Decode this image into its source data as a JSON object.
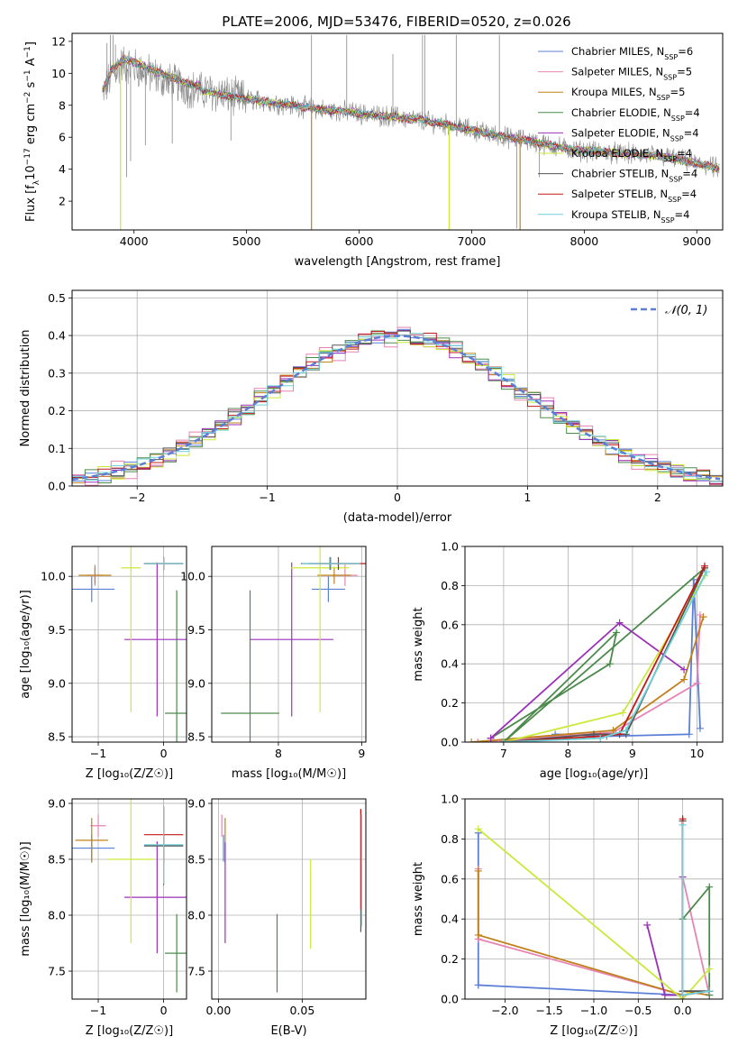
{
  "figure": {
    "title": "PLATE=2006, MJD=53476, FIBERID=0520, z=0.026"
  },
  "models": [
    {
      "key": "ch_miles",
      "label": "Chabrier MILES, N",
      "sub": "SSP",
      "suffix": "=6",
      "color": "#5b7fd6"
    },
    {
      "key": "sa_miles",
      "label": "Salpeter MILES, N",
      "sub": "SSP",
      "suffix": "=5",
      "color": "#e884b4"
    },
    {
      "key": "kr_miles",
      "label": "Kroupa MILES, N",
      "sub": "SSP",
      "suffix": "=5",
      "color": "#c0801a"
    },
    {
      "key": "ch_elodie",
      "label": "Chabrier ELODIE, N",
      "sub": "SSP",
      "suffix": "=4",
      "color": "#4c8a4c"
    },
    {
      "key": "sa_elodie",
      "label": "Salpeter ELODIE, N",
      "sub": "SSP",
      "suffix": "=4",
      "color": "#9b30b8"
    },
    {
      "key": "kr_elodie",
      "label": "Kroupa ELODIE, N",
      "sub": "SSP",
      "suffix": "=4",
      "color": "#c9ea3a"
    },
    {
      "key": "ch_stelib",
      "label": "Chabrier STELIB, N",
      "sub": "SSP",
      "suffix": "=4",
      "color": "#555555"
    },
    {
      "key": "sa_stelib",
      "label": "Salpeter STELIB, N",
      "sub": "SSP",
      "suffix": "=4",
      "color": "#c41818"
    },
    {
      "key": "kr_stelib",
      "label": "Kroupa STELIB, N",
      "sub": "SSP",
      "suffix": "=4",
      "color": "#6cd0d8"
    }
  ],
  "chart_data": [
    {
      "id": "spectrum",
      "type": "line",
      "title": "PLATE=2006, MJD=53476, FIBERID=0520, z=0.026",
      "xlabel": "wavelength [Angstrom, rest frame]",
      "ylabel_parts": [
        "Flux [f",
        "λ",
        "10",
        "−17",
        " erg cm",
        "−2",
        " s",
        "−1",
        " A",
        "−1",
        "]"
      ],
      "xlim": [
        3450,
        9230
      ],
      "ylim": [
        0.2,
        12.5
      ],
      "xticks": [
        4000,
        5000,
        6000,
        7000,
        8000,
        9000
      ],
      "yticks": [
        2,
        4,
        6,
        8,
        10,
        12
      ],
      "legend_loc": "upper right",
      "data_color": "#888888",
      "continuum": {
        "x": [
          3720,
          3800,
          3900,
          4000,
          4100,
          4200,
          4300,
          4400,
          4500,
          4700,
          4900,
          5100,
          5300,
          5500,
          5700,
          5900,
          6100,
          6300,
          6500,
          6700,
          6900,
          7100,
          7300,
          7500,
          7700,
          7900,
          8100,
          8300,
          8500,
          8700,
          8900,
          9100,
          9200
        ],
        "y": [
          8.6,
          9.9,
          10.6,
          10.4,
          10.1,
          9.8,
          9.5,
          9.3,
          9.0,
          8.8,
          8.5,
          8.3,
          8.1,
          7.9,
          7.7,
          7.6,
          7.4,
          7.3,
          7.1,
          6.9,
          6.6,
          6.3,
          6.0,
          5.8,
          5.5,
          5.2,
          5.1,
          5.0,
          4.9,
          4.8,
          4.5,
          4.2,
          4.0
        ]
      },
      "data_spikes": [
        {
          "x": 3760,
          "y": 11.9
        },
        {
          "x": 3790,
          "y": 12.4
        },
        {
          "x": 3815,
          "y": 12.4
        },
        {
          "x": 3835,
          "y": 11.8
        },
        {
          "x": 3935,
          "y": 3.5
        },
        {
          "x": 3970,
          "y": 4.5
        },
        {
          "x": 4101,
          "y": 5.5
        },
        {
          "x": 4340,
          "y": 5.6
        },
        {
          "x": 4861,
          "y": 5.8
        },
        {
          "x": 5577,
          "y": 12.4
        },
        {
          "x": 5890,
          "y": 12.4
        },
        {
          "x": 6300,
          "y": 11.2
        },
        {
          "x": 6563,
          "y": 12.4
        },
        {
          "x": 6583,
          "y": 12.4
        },
        {
          "x": 6863,
          "y": 12.4
        },
        {
          "x": 7246,
          "y": 12.4
        },
        {
          "x": 7400,
          "y": 0.3
        },
        {
          "x": 7600,
          "y": 3.5
        }
      ],
      "model_dips": [
        {
          "x": 3880,
          "y": 0.2,
          "model": "kr_elodie"
        },
        {
          "x": 5577,
          "y": 0.2,
          "model": "kr_miles"
        },
        {
          "x": 6800,
          "y": 0.2,
          "model": "kr_elodie"
        },
        {
          "x": 7430,
          "y": 0.2,
          "model": "kr_miles"
        }
      ]
    },
    {
      "id": "residuals",
      "type": "bar",
      "xlabel": "(data-model)/error",
      "ylabel": "Normed distribution",
      "xlim": [
        -2.5,
        2.5
      ],
      "ylim": [
        0,
        0.52
      ],
      "xticks": [
        -2,
        -1,
        0,
        1,
        2
      ],
      "xtick_labels": [
        "−2",
        "−1",
        "0",
        "1",
        "2"
      ],
      "yticks": [
        0.0,
        0.1,
        0.2,
        0.3,
        0.4,
        0.5
      ],
      "bin_width": 0.1,
      "bin_start": -2.5,
      "grid": true,
      "legend_loc": "upper right",
      "reference_curve": {
        "label": "𝒩(0, 1)",
        "color": "#5b7fd6",
        "mu": 0,
        "sigma": 1
      },
      "jitter_amplitudes": [
        0.018,
        0.03,
        0.02,
        0.025,
        0.02,
        0.022,
        0.015,
        0.02,
        0.015
      ]
    },
    {
      "id": "age_vs_Z",
      "type": "scatter",
      "xlabel": "Z [log₁₀(Z/Z☉)]",
      "ylabel": "age  [log₁₀(age/yr)]",
      "xlim": [
        -1.4,
        0.35
      ],
      "ylim": [
        8.45,
        10.28
      ],
      "xticks": [
        -1,
        0
      ],
      "xtick_labels": [
        "−1",
        "0"
      ],
      "yticks": [
        8.5,
        9.0,
        9.5,
        10.0
      ],
      "grid": true,
      "points": [
        {
          "model": "ch_miles",
          "x": -1.1,
          "y": 9.88,
          "xerr": 0.35,
          "yerr": 0.12
        },
        {
          "model": "sa_miles",
          "x": -1.05,
          "y": 10.01,
          "xerr": 0.12,
          "yerr": 0.1
        },
        {
          "model": "kr_miles",
          "x": -1.05,
          "y": 10.01,
          "xerr": 0.25,
          "yerr": 0.08
        },
        {
          "model": "ch_elodie",
          "x": 0.2,
          "y": 8.72,
          "xerr": 0.18,
          "yerr": 1.15
        },
        {
          "model": "sa_elodie",
          "x": -0.1,
          "y": 9.41,
          "xerr": 0.5,
          "yerr": 0.72
        },
        {
          "model": "kr_elodie",
          "x": -0.5,
          "y": 10.08,
          "xerr": 0.15,
          "yerr": 1.35
        },
        {
          "model": "ch_stelib",
          "x": 0.0,
          "y": 10.12,
          "xerr": 0.3,
          "yerr": 0.06
        },
        {
          "model": "sa_stelib",
          "x": 0.0,
          "y": 10.12,
          "xerr": 0.3,
          "yerr": 0.06
        },
        {
          "model": "kr_stelib",
          "x": 0.0,
          "y": 10.12,
          "xerr": 0.3,
          "yerr": 0.06
        }
      ]
    },
    {
      "id": "age_vs_mass",
      "type": "scatter",
      "xlabel": "mass [log₁₀(M/M☉)]",
      "ylabel": "",
      "xlim": [
        7.2,
        9.05
      ],
      "ylim": [
        8.45,
        10.28
      ],
      "xticks": [
        8,
        9
      ],
      "xtick_labels": [
        "8",
        "9"
      ],
      "yticks": [
        8.5,
        9.0,
        9.5,
        10.0
      ],
      "grid": true,
      "points": [
        {
          "model": "ch_miles",
          "x": 8.6,
          "y": 9.88,
          "xerr": 0.2,
          "yerr": 0.12
        },
        {
          "model": "sa_miles",
          "x": 8.8,
          "y": 10.01,
          "xerr": 0.15,
          "yerr": 0.1
        },
        {
          "model": "kr_miles",
          "x": 8.67,
          "y": 10.01,
          "xerr": 0.2,
          "yerr": 0.08
        },
        {
          "model": "ch_elodie",
          "x": 7.66,
          "y": 8.72,
          "xerr": 0.35,
          "yerr": 1.15
        },
        {
          "model": "sa_elodie",
          "x": 8.16,
          "y": 9.41,
          "xerr": 0.5,
          "yerr": 0.72
        },
        {
          "model": "kr_elodie",
          "x": 8.5,
          "y": 10.08,
          "xerr": 0.35,
          "yerr": 1.35
        },
        {
          "model": "ch_stelib",
          "x": 8.62,
          "y": 10.12,
          "xerr": 0.35,
          "yerr": 0.06
        },
        {
          "model": "sa_stelib",
          "x": 8.72,
          "y": 10.12,
          "xerr": 0.35,
          "yerr": 0.06
        },
        {
          "model": "kr_stelib",
          "x": 8.63,
          "y": 10.12,
          "xerr": 0.35,
          "yerr": 0.06
        }
      ]
    },
    {
      "id": "mass_vs_Z",
      "type": "scatter",
      "xlabel": "Z [log₁₀(Z/Z☉)]",
      "ylabel": "mass [log₁₀(M/M☉)]",
      "xlim": [
        -1.4,
        0.35
      ],
      "ylim": [
        7.25,
        9.04
      ],
      "xticks": [
        -1,
        0
      ],
      "xtick_labels": [
        "−1",
        "0"
      ],
      "yticks": [
        7.5,
        8.0,
        8.5,
        9.0
      ],
      "grid": true,
      "points": [
        {
          "model": "ch_miles",
          "x": -1.1,
          "y": 8.6,
          "xerr": 0.35,
          "yerr": 0.12
        },
        {
          "model": "sa_miles",
          "x": -1.0,
          "y": 8.8,
          "xerr": 0.12,
          "yerr": 0.1
        },
        {
          "model": "kr_miles",
          "x": -1.1,
          "y": 8.67,
          "xerr": 0.25,
          "yerr": 0.2
        },
        {
          "model": "ch_elodie",
          "x": 0.2,
          "y": 7.66,
          "xerr": 0.18,
          "yerr": 0.35
        },
        {
          "model": "sa_elodie",
          "x": -0.1,
          "y": 8.16,
          "xerr": 0.5,
          "yerr": 0.5
        },
        {
          "model": "kr_elodie",
          "x": -0.5,
          "y": 8.5,
          "xerr": 0.35,
          "yerr": 0.75
        },
        {
          "model": "ch_stelib",
          "x": 0.0,
          "y": 8.62,
          "xerr": 0.3,
          "yerr": 0.35
        },
        {
          "model": "sa_stelib",
          "x": 0.0,
          "y": 8.72,
          "xerr": 0.3,
          "yerr": 0.25
        },
        {
          "model": "kr_stelib",
          "x": 0.0,
          "y": 8.63,
          "xerr": 0.3,
          "yerr": 0.35
        }
      ]
    },
    {
      "id": "mass_vs_ebv",
      "type": "scatter",
      "xlabel": "E(B-V)",
      "ylabel": "",
      "xlim": [
        -0.004,
        0.088
      ],
      "ylim": [
        7.25,
        9.04
      ],
      "xticks": [
        0.0,
        0.05
      ],
      "xtick_labels": [
        "0.00",
        "0.05"
      ],
      "yticks": [
        7.5,
        8.0,
        8.5,
        9.0
      ],
      "grid": true,
      "points": [
        {
          "model": "ch_miles",
          "x": 0.003,
          "y": 8.6,
          "xerr": 0,
          "yerr": 0.12
        },
        {
          "model": "sa_miles",
          "x": 0.002,
          "y": 8.8,
          "xerr": 0,
          "yerr": 0.1
        },
        {
          "model": "kr_miles",
          "x": 0.004,
          "y": 8.67,
          "xerr": 0,
          "yerr": 0.2
        },
        {
          "model": "ch_elodie",
          "x": 0.035,
          "y": 7.66,
          "xerr": 0,
          "yerr": 0.35
        },
        {
          "model": "sa_elodie",
          "x": 0.004,
          "y": 8.2,
          "xerr": 0,
          "yerr": 0.45
        },
        {
          "model": "kr_elodie",
          "x": 0.055,
          "y": 8.1,
          "xerr": 0,
          "yerr": 0.4
        },
        {
          "model": "ch_stelib",
          "x": 0.085,
          "y": 8.4,
          "xerr": 0,
          "yerr": 0.55
        },
        {
          "model": "sa_stelib",
          "x": 0.085,
          "y": 8.5,
          "xerr": 0,
          "yerr": 0.45
        },
        {
          "model": "kr_stelib",
          "x": 0.0855,
          "y": 8.4,
          "xerr": 0,
          "yerr": 0.5
        }
      ]
    },
    {
      "id": "weight_vs_age",
      "type": "line",
      "xlabel": "age  [log₁₀(age/yr)]",
      "ylabel": "mass weight",
      "xlim": [
        6.4,
        10.4
      ],
      "ylim": [
        0,
        1.0
      ],
      "xticks": [
        7,
        8,
        9,
        10
      ],
      "yticks": [
        0.0,
        0.2,
        0.4,
        0.6,
        0.8,
        1.0
      ],
      "grid": true,
      "series": [
        {
          "model": "ch_miles",
          "x": [
            7.8,
            8.6,
            9.88,
            9.95,
            10.05
          ],
          "y": [
            0.04,
            0.03,
            0.04,
            0.83,
            0.07
          ]
        },
        {
          "model": "sa_miles",
          "x": [
            6.6,
            8.7,
            10.0,
            10.05
          ],
          "y": [
            0.0,
            0.05,
            0.3,
            0.65
          ]
        },
        {
          "model": "kr_miles",
          "x": [
            6.5,
            8.7,
            9.8,
            10.1
          ],
          "y": [
            0.0,
            0.06,
            0.32,
            0.64
          ]
        },
        {
          "model": "ch_elodie",
          "x": [
            6.8,
            8.65,
            8.75,
            7.0,
            10.12
          ],
          "y": [
            0.02,
            0.4,
            0.56,
            0.0,
            0.89
          ]
        },
        {
          "model": "sa_elodie",
          "x": [
            6.8,
            8.8,
            9.8
          ],
          "y": [
            0.02,
            0.61,
            0.37
          ]
        },
        {
          "model": "kr_elodie",
          "x": [
            7.0,
            8.85,
            10.12
          ],
          "y": [
            0.0,
            0.15,
            0.85
          ]
        },
        {
          "model": "ch_stelib",
          "x": [
            7.0,
            8.4,
            8.9,
            10.12
          ],
          "y": [
            0.0,
            0.04,
            0.04,
            0.89
          ]
        },
        {
          "model": "sa_stelib",
          "x": [
            7.0,
            8.5,
            8.8,
            10.12
          ],
          "y": [
            0.0,
            0.03,
            0.04,
            0.9
          ]
        },
        {
          "model": "kr_stelib",
          "x": [
            7.0,
            8.5,
            8.9,
            10.15
          ],
          "y": [
            0.0,
            0.02,
            0.06,
            0.87
          ]
        }
      ]
    },
    {
      "id": "weight_vs_Z",
      "type": "line",
      "xlabel": "Z [log₁₀(Z/Z☉)]",
      "ylabel": "mass weight",
      "xlim": [
        -2.45,
        0.45
      ],
      "ylim": [
        0,
        1.0
      ],
      "xticks": [
        -2.0,
        -1.5,
        -1.0,
        -0.5,
        0.0
      ],
      "xtick_labels": [
        "−2.0",
        "−1.5",
        "−1.0",
        "−0.5",
        "0.0"
      ],
      "yticks": [
        0.0,
        0.2,
        0.4,
        0.6,
        0.8,
        1.0
      ],
      "grid": true,
      "series": [
        {
          "model": "ch_miles",
          "x": [
            -2.3,
            -2.3,
            -2.3,
            0.0,
            0.0,
            0.0
          ],
          "y": [
            0.83,
            0.07,
            0.07,
            0.02,
            0.04,
            0.04
          ]
        },
        {
          "model": "sa_miles",
          "x": [
            -2.3,
            -2.3,
            0.0,
            0.0,
            0.3
          ],
          "y": [
            0.65,
            0.3,
            0.02,
            0.61,
            0.02
          ]
        },
        {
          "model": "kr_miles",
          "x": [
            -2.3,
            -2.3,
            0.0,
            0.0,
            0.3
          ],
          "y": [
            0.64,
            0.32,
            0.02,
            0.04,
            0.02
          ]
        },
        {
          "model": "ch_elodie",
          "x": [
            0.0,
            0.0,
            0.3,
            0.3
          ],
          "y": [
            0.89,
            0.4,
            0.56,
            0.02
          ]
        },
        {
          "model": "sa_elodie",
          "x": [
            -0.4,
            -0.2,
            0.0,
            0.0
          ],
          "y": [
            0.37,
            0.02,
            0.02,
            0.61
          ]
        },
        {
          "model": "kr_elodie",
          "x": [
            -2.3,
            0.0,
            0.3
          ],
          "y": [
            0.85,
            0.0,
            0.15
          ]
        },
        {
          "model": "ch_stelib",
          "x": [
            0.0,
            0.0,
            0.3,
            0.3
          ],
          "y": [
            0.89,
            0.04,
            0.04,
            0.04
          ]
        },
        {
          "model": "sa_stelib",
          "x": [
            0.0,
            0.0,
            0.3
          ],
          "y": [
            0.9,
            0.02,
            0.04
          ]
        },
        {
          "model": "kr_stelib",
          "x": [
            0.0,
            0.0,
            0.3
          ],
          "y": [
            0.87,
            0.02,
            0.04
          ]
        }
      ]
    }
  ]
}
